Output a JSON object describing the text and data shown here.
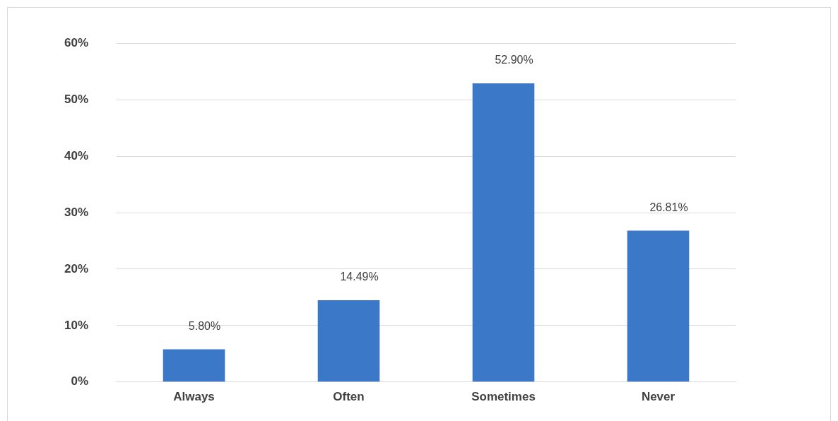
{
  "chart_data": {
    "type": "bar",
    "categories": [
      "Always",
      "Often",
      "Sometimes",
      "Never"
    ],
    "values": [
      5.8,
      14.49,
      52.9,
      26.81
    ],
    "value_labels": [
      "5.80%",
      "14.49%",
      "52.90%",
      "26.81%"
    ],
    "color": "#3b78c8",
    "ylim": [
      0,
      60
    ],
    "yticks": [
      {
        "value": 0,
        "label": "0%"
      },
      {
        "value": 10,
        "label": "10%"
      },
      {
        "value": 20,
        "label": "20%"
      },
      {
        "value": 30,
        "label": "30%"
      },
      {
        "value": 40,
        "label": "40%"
      },
      {
        "value": 50,
        "label": "50%"
      },
      {
        "value": 60,
        "label": "60%"
      }
    ],
    "grid": "y"
  }
}
